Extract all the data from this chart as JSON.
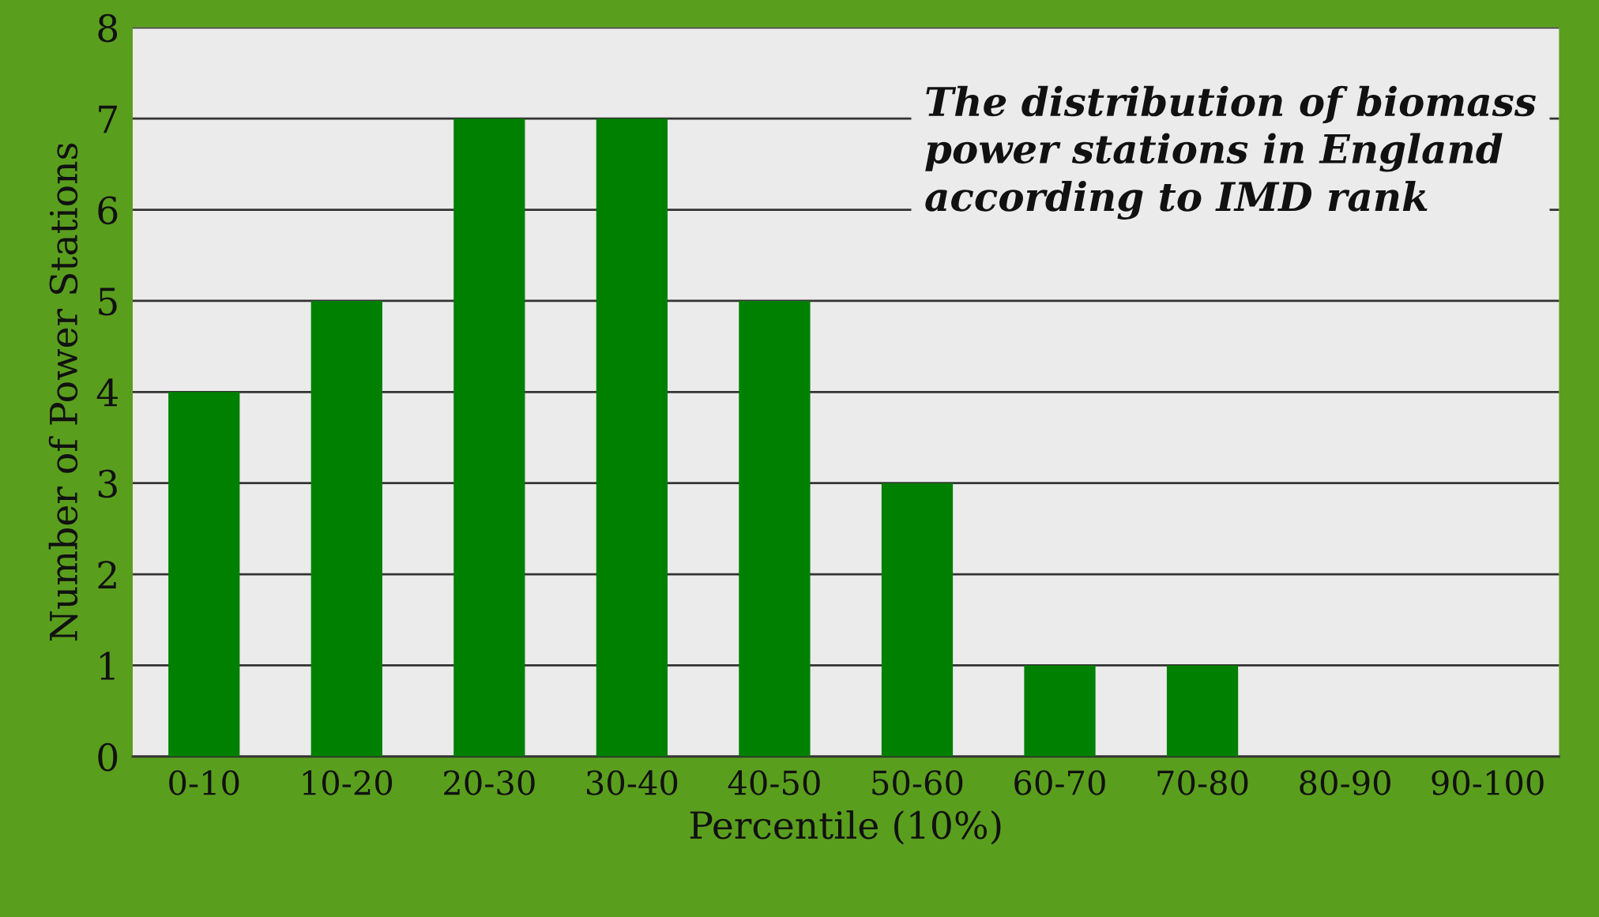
{
  "chart_data": {
    "type": "bar",
    "title": "The distribution of biomass\npower stations in England\naccording to IMD rank",
    "xlabel": "Percentile (10%)",
    "ylabel": "Number of Power Stations",
    "categories": [
      "0-10",
      "10-20",
      "20-30",
      "30-40",
      "40-50",
      "50-60",
      "60-70",
      "70-80",
      "80-90",
      "90-100"
    ],
    "values": [
      4,
      5,
      7,
      7,
      5,
      3,
      1,
      1,
      0,
      0
    ],
    "color": "#008000",
    "ylim": [
      0,
      8
    ],
    "yticks": [
      0,
      1,
      2,
      3,
      4,
      5,
      6,
      7,
      8
    ],
    "grid": "y",
    "legend": false
  }
}
